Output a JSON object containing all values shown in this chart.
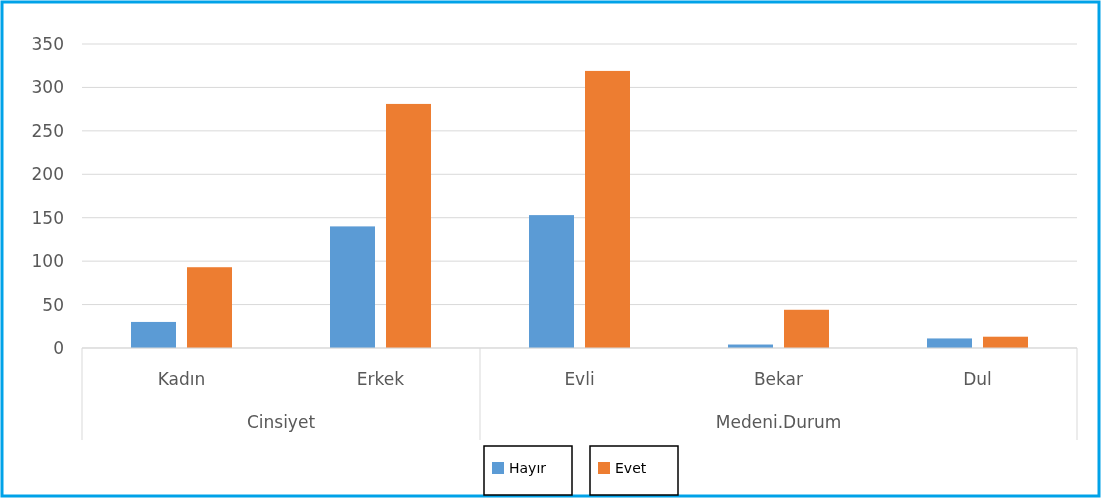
{
  "chart_data": {
    "type": "bar",
    "categories": [
      "Kadın",
      "Erkek",
      "Evli",
      "Bekar",
      "Dul"
    ],
    "series": [
      {
        "name": "Hayır",
        "color": "#5b9bd5",
        "values": [
          30,
          140,
          153,
          4,
          11
        ]
      },
      {
        "name": "Evet",
        "color": "#ed7d31",
        "values": [
          93,
          281,
          319,
          44,
          13
        ]
      }
    ],
    "ylim": [
      0,
      350
    ],
    "yticks": [
      0,
      50,
      100,
      150,
      200,
      250,
      300,
      350
    ],
    "grid": "y",
    "legend": "bottom",
    "annotations": [
      "Cinsiyet",
      "Medeni.Durum"
    ]
  }
}
